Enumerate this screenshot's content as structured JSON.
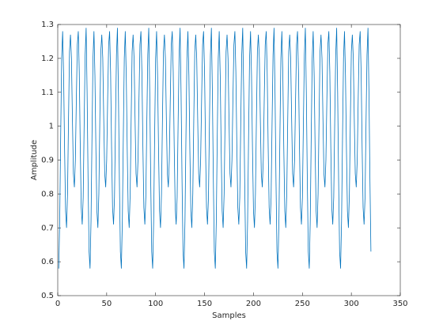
{
  "chart_data": {
    "type": "line",
    "xlabel": "Samples",
    "ylabel": "Amplitude",
    "xlim": [
      0,
      350
    ],
    "xticks": [
      0,
      50,
      100,
      150,
      200,
      250,
      300,
      350
    ],
    "ylim": [
      0.5,
      1.3
    ],
    "yticks": [
      0.5,
      0.6,
      0.7,
      0.8,
      0.9,
      1,
      1.1,
      1.2,
      1.3
    ],
    "color": "#0072bd",
    "x": [
      1,
      2,
      3,
      4,
      5,
      6,
      7,
      8,
      9,
      10,
      11,
      12,
      13,
      14,
      15,
      16,
      17,
      18,
      19,
      20,
      21,
      22,
      23,
      24,
      25,
      26,
      27,
      28,
      29,
      30,
      31,
      32,
      33,
      34,
      35,
      36,
      37,
      38,
      39,
      40,
      41,
      42,
      43,
      44,
      45,
      46,
      47,
      48,
      49,
      50,
      51,
      52,
      53,
      54,
      55,
      56,
      57,
      58,
      59,
      60,
      61,
      62,
      63,
      64,
      65,
      66,
      67,
      68,
      69,
      70,
      71,
      72,
      73,
      74,
      75,
      76,
      77,
      78,
      79,
      80,
      81,
      82,
      83,
      84,
      85,
      86,
      87,
      88,
      89,
      90,
      91,
      92,
      93,
      94,
      95,
      96,
      97,
      98,
      99,
      100,
      101,
      102,
      103,
      104,
      105,
      106,
      107,
      108,
      109,
      110,
      111,
      112,
      113,
      114,
      115,
      116,
      117,
      118,
      119,
      120,
      121,
      122,
      123,
      124,
      125,
      126,
      127,
      128,
      129,
      130,
      131,
      132,
      133,
      134,
      135,
      136,
      137,
      138,
      139,
      140,
      141,
      142,
      143,
      144,
      145,
      146,
      147,
      148,
      149,
      150,
      151,
      152,
      153,
      154,
      155,
      156,
      157,
      158,
      159,
      160,
      161,
      162,
      163,
      164,
      165,
      166,
      167,
      168,
      169,
      170,
      171,
      172,
      173,
      174,
      175,
      176,
      177,
      178,
      179,
      180,
      181,
      182,
      183,
      184,
      185,
      186,
      187,
      188,
      189,
      190,
      191,
      192,
      193,
      194,
      195,
      196,
      197,
      198,
      199,
      200,
      201,
      202,
      203,
      204,
      205,
      206,
      207,
      208,
      209,
      210,
      211,
      212,
      213,
      214,
      215,
      216,
      217,
      218,
      219,
      220,
      221,
      222,
      223,
      224,
      225,
      226,
      227,
      228,
      229,
      230,
      231,
      232,
      233,
      234,
      235,
      236,
      237,
      238,
      239,
      240,
      241,
      242,
      243,
      244,
      245,
      246,
      247,
      248,
      249,
      250,
      251,
      252,
      253,
      254,
      255,
      256,
      257,
      258,
      259,
      260,
      261,
      262,
      263,
      264,
      265,
      266,
      267,
      268,
      269,
      270,
      271,
      272,
      273,
      274,
      275,
      276,
      277,
      278,
      279,
      280,
      281,
      282,
      283,
      284,
      285,
      286,
      287,
      288,
      289,
      290,
      291,
      292,
      293,
      294,
      295,
      296,
      297,
      298,
      299,
      300,
      301,
      302,
      303,
      304,
      305,
      306,
      307,
      308,
      309,
      310,
      311,
      312,
      313,
      314,
      315,
      316,
      317,
      318,
      319,
      320
    ],
    "values": [
      0.58,
      0.72,
      0.97,
      1.2,
      1.28,
      1.15,
      0.93,
      0.75,
      0.7,
      0.8,
      1.02,
      1.22,
      1.27,
      1.2,
      1.02,
      0.86,
      0.82,
      0.9,
      1.08,
      1.24,
      1.28,
      1.16,
      0.94,
      0.76,
      0.71,
      0.79,
      1.01,
      1.21,
      1.29,
      1.1,
      0.84,
      0.63,
      0.58,
      0.72,
      0.97,
      1.2,
      1.28,
      1.15,
      0.93,
      0.75,
      0.7,
      0.8,
      1.02,
      1.22,
      1.27,
      1.2,
      1.02,
      0.86,
      0.82,
      0.9,
      1.08,
      1.24,
      1.28,
      1.16,
      0.94,
      0.76,
      0.71,
      0.79,
      1.01,
      1.21,
      1.29,
      1.1,
      0.84,
      0.63,
      0.58,
      0.72,
      0.97,
      1.2,
      1.28,
      1.15,
      0.93,
      0.75,
      0.7,
      0.8,
      1.02,
      1.22,
      1.27,
      1.2,
      1.02,
      0.86,
      0.82,
      0.9,
      1.08,
      1.24,
      1.28,
      1.16,
      0.94,
      0.76,
      0.71,
      0.79,
      1.01,
      1.21,
      1.29,
      1.1,
      0.84,
      0.63,
      0.58,
      0.72,
      0.97,
      1.2,
      1.28,
      1.15,
      0.93,
      0.75,
      0.7,
      0.8,
      1.02,
      1.22,
      1.27,
      1.2,
      1.02,
      0.86,
      0.82,
      0.9,
      1.08,
      1.24,
      1.28,
      1.16,
      0.94,
      0.76,
      0.71,
      0.79,
      1.01,
      1.21,
      1.29,
      1.1,
      0.84,
      0.63,
      0.58,
      0.72,
      0.97,
      1.2,
      1.28,
      1.15,
      0.93,
      0.75,
      0.7,
      0.8,
      1.02,
      1.22,
      1.27,
      1.2,
      1.02,
      0.86,
      0.82,
      0.9,
      1.08,
      1.24,
      1.28,
      1.16,
      0.94,
      0.76,
      0.71,
      0.79,
      1.01,
      1.21,
      1.29,
      1.1,
      0.84,
      0.63,
      0.58,
      0.72,
      0.97,
      1.2,
      1.28,
      1.15,
      0.93,
      0.75,
      0.7,
      0.8,
      1.02,
      1.22,
      1.27,
      1.2,
      1.02,
      0.86,
      0.82,
      0.9,
      1.08,
      1.24,
      1.28,
      1.16,
      0.94,
      0.76,
      0.71,
      0.79,
      1.01,
      1.21,
      1.29,
      1.1,
      0.84,
      0.63,
      0.58,
      0.72,
      0.97,
      1.2,
      1.28,
      1.15,
      0.93,
      0.75,
      0.7,
      0.8,
      1.02,
      1.22,
      1.27,
      1.2,
      1.02,
      0.86,
      0.82,
      0.9,
      1.08,
      1.24,
      1.28,
      1.16,
      0.94,
      0.76,
      0.71,
      0.79,
      1.01,
      1.21,
      1.29,
      1.1,
      0.84,
      0.63,
      0.58,
      0.72,
      0.97,
      1.2,
      1.28,
      1.15,
      0.93,
      0.75,
      0.7,
      0.8,
      1.02,
      1.22,
      1.27,
      1.2,
      1.02,
      0.86,
      0.82,
      0.9,
      1.08,
      1.24,
      1.28,
      1.16,
      0.94,
      0.76,
      0.71,
      0.79,
      1.01,
      1.21,
      1.29,
      1.1,
      0.84,
      0.63,
      0.58,
      0.72,
      0.97,
      1.2,
      1.28,
      1.15,
      0.93,
      0.75,
      0.7,
      0.8,
      1.02,
      1.22,
      1.27,
      1.2,
      1.02,
      0.86,
      0.82,
      0.9,
      1.08,
      1.24,
      1.28,
      1.16,
      0.94,
      0.76,
      0.71,
      0.79,
      1.01,
      1.21,
      1.29,
      1.1,
      0.84,
      0.63,
      0.58,
      0.72,
      0.97,
      1.2,
      1.28,
      1.15,
      0.93,
      0.75,
      0.7,
      0.8,
      1.02,
      1.22,
      1.27,
      1.2,
      1.02,
      0.86,
      0.82,
      0.9,
      1.08,
      1.24,
      1.28,
      1.16,
      0.94,
      0.76,
      0.71,
      0.79,
      1.01,
      1.21,
      1.29,
      1.1,
      0.84,
      0.63
    ]
  }
}
